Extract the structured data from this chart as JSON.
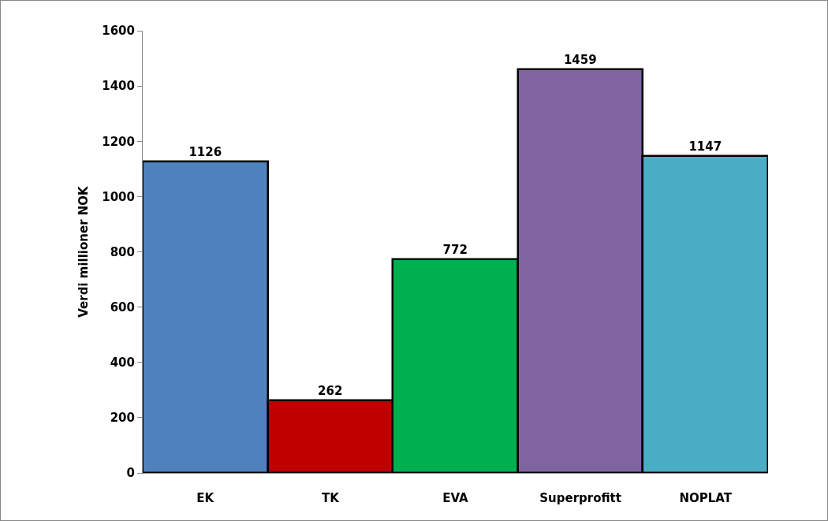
{
  "chart_data": {
    "type": "bar",
    "ylabel": "Verdi millioner NOK",
    "categories": [
      "EK",
      "TK",
      "EVA",
      "Superprofitt",
      "NOPLAT"
    ],
    "values": [
      1126,
      262,
      772,
      1459,
      1147
    ],
    "colors": [
      "#4f81bd",
      "#c00000",
      "#00b050",
      "#8064a2",
      "#4bacc6"
    ],
    "ylim": [
      0,
      1600
    ],
    "yticks": [
      0,
      200,
      400,
      600,
      800,
      1000,
      1200,
      1400,
      1600
    ],
    "grid": false,
    "legend": false,
    "data_labels": true
  }
}
